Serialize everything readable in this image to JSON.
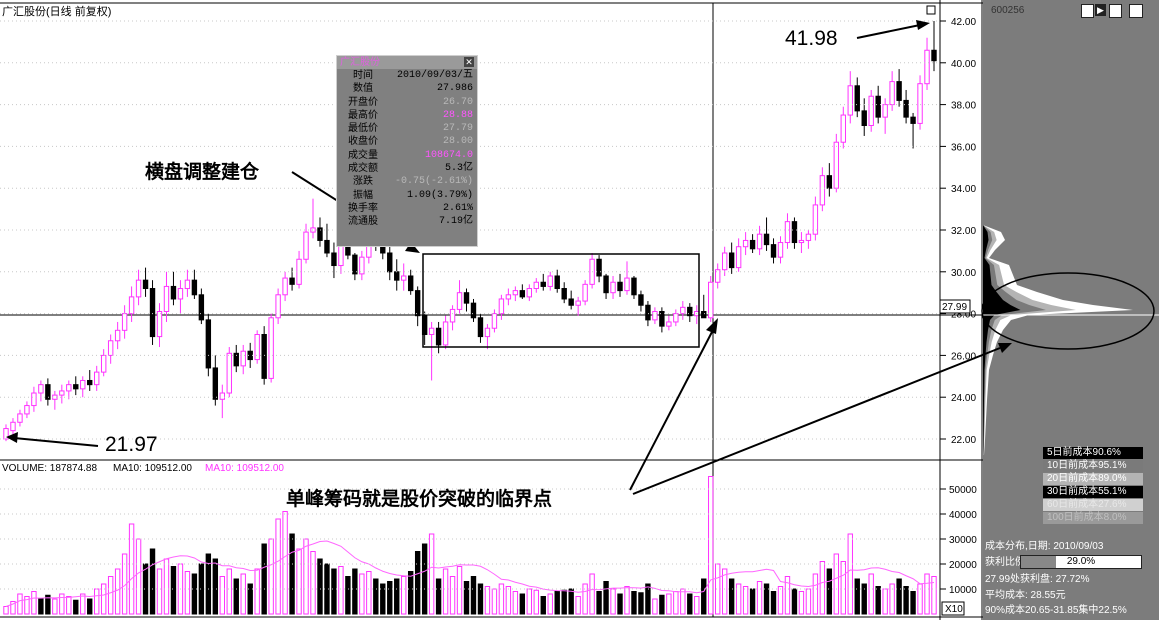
{
  "title": "广汇股份(日线 前复权)",
  "stock_code": "600256",
  "info_box": {
    "title": "广汇股份",
    "rows": [
      {
        "k": "时间",
        "v": "2010/09/03/五",
        "style": ""
      },
      {
        "k": "数值",
        "v": "27.986",
        "style": ""
      },
      {
        "k": "开盘价",
        "v": "26.70",
        "style": "dim"
      },
      {
        "k": "最高价",
        "v": "28.88",
        "style": "pk"
      },
      {
        "k": "最低价",
        "v": "27.79",
        "style": "dim"
      },
      {
        "k": "收盘价",
        "v": "28.00",
        "style": "dim"
      },
      {
        "k": "成交量",
        "v": "108674.0",
        "style": "pk"
      },
      {
        "k": "成交额",
        "v": "5.3亿",
        "style": ""
      },
      {
        "k": "涨跌",
        "v": "-0.75(-2.61%)",
        "style": "dim"
      },
      {
        "k": "振幅",
        "v": "1.09(3.79%)",
        "style": ""
      },
      {
        "k": "换手率",
        "v": "2.61%",
        "style": ""
      },
      {
        "k": "流通股",
        "v": "7.19亿",
        "style": ""
      }
    ]
  },
  "annotations": {
    "low": "21.97",
    "high": "41.98",
    "consolidation": "横盘调整建仓",
    "breakout": "单峰筹码就是股价突破的临界点"
  },
  "current_price_label": "27.99",
  "volume_header": {
    "vol": "VOLUME: 187874.88",
    "ma5": "MA10: 109512.00",
    "ma10": "MA10: 109512.00"
  },
  "volume_multiplier": "X10",
  "cost_bands": [
    {
      "label": "5日前成本90.6%",
      "bg": "#000000",
      "fg": "#ffffff"
    },
    {
      "label": "10日前成本95.1%",
      "bg": "#7a7a7a",
      "fg": "#ffffff"
    },
    {
      "label": "20日前成本89.0%",
      "bg": "#b4b4b4",
      "fg": "#ffffff"
    },
    {
      "label": "30日前成本55.1%",
      "bg": "#000000",
      "fg": "#ffffff"
    },
    {
      "label": "60日前成本27.6%",
      "bg": "#d0d0d0",
      "fg": "#e8e8e8"
    },
    {
      "label": "100日前成本8.0%",
      "bg": "#9a9a9a",
      "fg": "#c0c0c0"
    }
  ],
  "cost_summary": {
    "line1": "成本分布,日期: 2010/09/03",
    "profit_label": "获利比例:",
    "profit_value": "29.0%",
    "line3": "27.99处获利盘: 27.72%",
    "line4": "平均成本: 28.55元",
    "line5": "90%成本20.65-31.85集中22.5%"
  },
  "colors": {
    "up": "#ff33ff",
    "down": "#000000",
    "panel": "#7c7c7c"
  },
  "chart_data": {
    "type": "candlestick",
    "title": "广汇股份(日线 前复权)",
    "price_axis": {
      "ticks": [
        "22.00",
        "24.00",
        "26.00",
        "28.00",
        "30.00",
        "32.00",
        "34.00",
        "36.00",
        "38.00",
        "40.00",
        "42.00"
      ],
      "ylim": [
        21,
        42.5
      ]
    },
    "volume_axis": {
      "ticks": [
        "10000",
        "20000",
        "30000",
        "40000",
        "50000"
      ],
      "ylim": [
        0,
        60000
      ]
    },
    "candles": [
      [
        22.0,
        22.7,
        21.9,
        22.5
      ],
      [
        22.4,
        23.0,
        22.2,
        22.8
      ],
      [
        22.8,
        23.4,
        22.6,
        23.2
      ],
      [
        23.2,
        23.8,
        23.0,
        23.6
      ],
      [
        23.6,
        24.5,
        23.3,
        24.2
      ],
      [
        24.2,
        24.8,
        23.8,
        24.6
      ],
      [
        24.6,
        24.9,
        23.6,
        23.9
      ],
      [
        23.9,
        24.3,
        23.4,
        24.1
      ],
      [
        24.1,
        24.6,
        23.7,
        24.3
      ],
      [
        24.3,
        24.8,
        23.9,
        24.6
      ],
      [
        24.6,
        25.0,
        24.1,
        24.4
      ],
      [
        24.4,
        25.0,
        24.0,
        24.8
      ],
      [
        24.8,
        25.3,
        24.3,
        24.6
      ],
      [
        24.6,
        25.5,
        24.3,
        25.2
      ],
      [
        25.2,
        26.3,
        25.0,
        26.0
      ],
      [
        26.0,
        27.0,
        25.6,
        26.7
      ],
      [
        26.7,
        27.6,
        26.3,
        27.2
      ],
      [
        27.2,
        28.4,
        26.8,
        28.0
      ],
      [
        28.0,
        29.3,
        27.6,
        28.8
      ],
      [
        28.8,
        30.1,
        28.4,
        29.6
      ],
      [
        29.6,
        30.2,
        28.8,
        29.2
      ],
      [
        29.2,
        29.6,
        26.5,
        26.9
      ],
      [
        26.9,
        28.5,
        26.4,
        28.1
      ],
      [
        28.1,
        30.0,
        27.6,
        29.3
      ],
      [
        29.3,
        30.0,
        28.4,
        28.7
      ],
      [
        28.7,
        29.6,
        28.0,
        29.2
      ],
      [
        29.2,
        30.1,
        28.8,
        29.6
      ],
      [
        29.6,
        30.1,
        28.7,
        28.9
      ],
      [
        28.9,
        29.2,
        27.5,
        27.7
      ],
      [
        27.7,
        28.0,
        25.0,
        25.4
      ],
      [
        25.4,
        26.0,
        23.6,
        23.9
      ],
      [
        23.9,
        24.6,
        23.0,
        24.2
      ],
      [
        24.2,
        26.4,
        24.0,
        26.1
      ],
      [
        26.1,
        26.5,
        25.2,
        25.5
      ],
      [
        25.5,
        26.5,
        25.1,
        26.2
      ],
      [
        26.2,
        26.6,
        25.4,
        25.8
      ],
      [
        25.8,
        27.2,
        25.6,
        27.0
      ],
      [
        27.0,
        27.4,
        24.6,
        24.9
      ],
      [
        24.9,
        28.0,
        24.7,
        27.8
      ],
      [
        27.8,
        29.2,
        27.5,
        28.9
      ],
      [
        28.9,
        30.0,
        28.6,
        29.7
      ],
      [
        29.7,
        30.2,
        29.1,
        29.4
      ],
      [
        29.4,
        31.0,
        29.2,
        30.6
      ],
      [
        30.6,
        32.3,
        30.4,
        31.9
      ],
      [
        31.9,
        33.5,
        31.6,
        32.1
      ],
      [
        32.1,
        32.6,
        31.2,
        31.5
      ],
      [
        31.5,
        32.3,
        30.7,
        30.9
      ],
      [
        30.9,
        31.4,
        29.7,
        30.3
      ],
      [
        30.3,
        32.2,
        29.9,
        31.8
      ],
      [
        31.8,
        32.0,
        30.6,
        30.8
      ],
      [
        30.8,
        30.9,
        29.6,
        29.9
      ],
      [
        29.9,
        31.0,
        29.6,
        30.7
      ],
      [
        30.7,
        32.5,
        30.4,
        32.1
      ],
      [
        32.1,
        32.7,
        31.0,
        31.3
      ],
      [
        31.3,
        31.9,
        30.6,
        30.9
      ],
      [
        30.9,
        31.2,
        29.6,
        30.0
      ],
      [
        30.0,
        30.6,
        29.1,
        29.6
      ],
      [
        29.6,
        30.4,
        29.1,
        29.8
      ],
      [
        29.8,
        30.1,
        28.9,
        29.1
      ],
      [
        29.1,
        29.3,
        27.4,
        27.9
      ],
      [
        27.9,
        28.1,
        26.5,
        27.0
      ],
      [
        27.0,
        27.6,
        24.8,
        27.3
      ],
      [
        27.3,
        27.6,
        26.1,
        26.5
      ],
      [
        26.5,
        27.9,
        26.3,
        27.6
      ],
      [
        27.6,
        28.4,
        27.2,
        28.2
      ],
      [
        28.2,
        29.6,
        28.0,
        29.0
      ],
      [
        29.0,
        29.2,
        28.1,
        28.5
      ],
      [
        28.5,
        28.7,
        27.6,
        27.8
      ],
      [
        27.8,
        28.0,
        26.6,
        26.9
      ],
      [
        26.9,
        27.5,
        26.3,
        27.3
      ],
      [
        27.3,
        28.2,
        27.1,
        28.0
      ],
      [
        28.0,
        28.9,
        27.7,
        28.7
      ],
      [
        28.7,
        29.2,
        28.4,
        28.9
      ],
      [
        28.9,
        29.3,
        28.6,
        29.1
      ],
      [
        29.1,
        29.4,
        28.7,
        28.8
      ],
      [
        28.8,
        29.4,
        28.6,
        29.2
      ],
      [
        29.2,
        29.7,
        29.0,
        29.5
      ],
      [
        29.5,
        29.9,
        29.1,
        29.3
      ],
      [
        29.3,
        30.0,
        29.1,
        29.8
      ],
      [
        29.8,
        30.1,
        29.0,
        29.2
      ],
      [
        29.2,
        29.5,
        28.5,
        28.7
      ],
      [
        28.7,
        29.1,
        28.2,
        28.4
      ],
      [
        28.4,
        28.8,
        27.9,
        28.6
      ],
      [
        28.6,
        29.6,
        28.4,
        29.4
      ],
      [
        29.4,
        30.9,
        29.2,
        30.6
      ],
      [
        30.6,
        30.8,
        29.5,
        29.8
      ],
      [
        29.8,
        29.9,
        28.7,
        29.0
      ],
      [
        29.0,
        29.8,
        28.7,
        29.5
      ],
      [
        29.5,
        29.9,
        28.8,
        29.1
      ],
      [
        29.1,
        30.5,
        28.9,
        29.7
      ],
      [
        29.7,
        29.8,
        28.7,
        28.9
      ],
      [
        28.9,
        29.1,
        28.1,
        28.4
      ],
      [
        28.4,
        28.6,
        27.4,
        27.7
      ],
      [
        27.7,
        28.3,
        27.5,
        28.1
      ],
      [
        28.1,
        28.3,
        27.1,
        27.4
      ],
      [
        27.4,
        27.9,
        27.2,
        27.6
      ],
      [
        27.6,
        28.2,
        27.4,
        28.0
      ],
      [
        28.0,
        28.6,
        27.7,
        28.3
      ],
      [
        28.3,
        28.5,
        27.6,
        27.9
      ],
      [
        27.9,
        28.4,
        27.5,
        28.1
      ],
      [
        28.1,
        28.9,
        27.8,
        27.8
      ],
      [
        27.8,
        29.8,
        27.6,
        29.5
      ],
      [
        29.5,
        30.4,
        29.2,
        30.1
      ],
      [
        30.1,
        31.2,
        29.8,
        30.9
      ],
      [
        30.9,
        31.4,
        29.9,
        30.2
      ],
      [
        30.2,
        31.6,
        30.0,
        31.2
      ],
      [
        31.2,
        31.9,
        30.8,
        31.5
      ],
      [
        31.5,
        31.8,
        30.9,
        31.1
      ],
      [
        31.1,
        32.2,
        30.8,
        31.8
      ],
      [
        31.8,
        32.6,
        31.0,
        31.3
      ],
      [
        31.3,
        31.6,
        30.4,
        30.7
      ],
      [
        30.7,
        31.7,
        30.4,
        31.4
      ],
      [
        31.4,
        32.8,
        31.1,
        32.4
      ],
      [
        32.4,
        32.6,
        31.1,
        31.4
      ],
      [
        31.4,
        31.9,
        30.9,
        31.5
      ],
      [
        31.5,
        32.0,
        31.1,
        31.8
      ],
      [
        31.8,
        33.6,
        31.5,
        33.2
      ],
      [
        33.2,
        35.0,
        32.9,
        34.6
      ],
      [
        34.6,
        35.2,
        33.6,
        34.0
      ],
      [
        34.0,
        36.6,
        33.8,
        36.2
      ],
      [
        36.2,
        37.9,
        35.9,
        37.5
      ],
      [
        37.5,
        39.6,
        37.1,
        38.9
      ],
      [
        38.9,
        39.3,
        37.4,
        37.7
      ],
      [
        37.7,
        38.3,
        36.5,
        37.0
      ],
      [
        37.0,
        38.7,
        36.7,
        38.4
      ],
      [
        38.4,
        38.9,
        37.1,
        37.4
      ],
      [
        37.4,
        38.3,
        36.6,
        38.0
      ],
      [
        38.0,
        39.6,
        37.7,
        39.1
      ],
      [
        39.1,
        39.7,
        37.9,
        38.2
      ],
      [
        38.2,
        38.7,
        37.1,
        37.4
      ],
      [
        37.4,
        37.6,
        35.9,
        37.1
      ],
      [
        37.1,
        39.4,
        36.8,
        39.0
      ],
      [
        39.0,
        41.2,
        38.7,
        40.6
      ],
      [
        40.6,
        42.0,
        39.6,
        40.1
      ]
    ],
    "volumes": [
      [
        3000,
        1
      ],
      [
        5000,
        1
      ],
      [
        8000,
        1
      ],
      [
        7000,
        1
      ],
      [
        9000,
        1
      ],
      [
        6000,
        0
      ],
      [
        7500,
        0
      ],
      [
        6000,
        1
      ],
      [
        8000,
        1
      ],
      [
        7000,
        1
      ],
      [
        5500,
        0
      ],
      [
        8000,
        1
      ],
      [
        6000,
        0
      ],
      [
        10000,
        1
      ],
      [
        12000,
        1
      ],
      [
        15000,
        1
      ],
      [
        18000,
        1
      ],
      [
        24000,
        1
      ],
      [
        36000,
        1
      ],
      [
        30000,
        1
      ],
      [
        20000,
        0
      ],
      [
        26000,
        0
      ],
      [
        18000,
        1
      ],
      [
        22000,
        1
      ],
      [
        19000,
        0
      ],
      [
        20000,
        1
      ],
      [
        17000,
        1
      ],
      [
        16000,
        0
      ],
      [
        20000,
        0
      ],
      [
        24000,
        0
      ],
      [
        22000,
        0
      ],
      [
        15000,
        1
      ],
      [
        18000,
        1
      ],
      [
        14000,
        0
      ],
      [
        16000,
        1
      ],
      [
        12000,
        0
      ],
      [
        18000,
        1
      ],
      [
        28000,
        0
      ],
      [
        30000,
        1
      ],
      [
        38000,
        1
      ],
      [
        41000,
        1
      ],
      [
        32000,
        0
      ],
      [
        26000,
        1
      ],
      [
        30000,
        1
      ],
      [
        25000,
        1
      ],
      [
        22000,
        0
      ],
      [
        20000,
        0
      ],
      [
        18000,
        0
      ],
      [
        19000,
        1
      ],
      [
        15000,
        0
      ],
      [
        18000,
        0
      ],
      [
        16000,
        1
      ],
      [
        17000,
        1
      ],
      [
        14000,
        0
      ],
      [
        12000,
        0
      ],
      [
        13000,
        0
      ],
      [
        14000,
        0
      ],
      [
        15000,
        1
      ],
      [
        17000,
        0
      ],
      [
        25000,
        0
      ],
      [
        28000,
        0
      ],
      [
        32000,
        1
      ],
      [
        14000,
        0
      ],
      [
        18000,
        1
      ],
      [
        15000,
        1
      ],
      [
        19000,
        1
      ],
      [
        13000,
        0
      ],
      [
        15000,
        0
      ],
      [
        12000,
        0
      ],
      [
        11000,
        1
      ],
      [
        10000,
        1
      ],
      [
        12000,
        1
      ],
      [
        11000,
        1
      ],
      [
        9000,
        1
      ],
      [
        8000,
        0
      ],
      [
        10000,
        1
      ],
      [
        9500,
        1
      ],
      [
        7000,
        0
      ],
      [
        8000,
        1
      ],
      [
        9000,
        0
      ],
      [
        9500,
        0
      ],
      [
        10000,
        0
      ],
      [
        7000,
        1
      ],
      [
        12000,
        1
      ],
      [
        16000,
        1
      ],
      [
        9000,
        0
      ],
      [
        13000,
        0
      ],
      [
        10000,
        1
      ],
      [
        8000,
        0
      ],
      [
        11000,
        1
      ],
      [
        9000,
        0
      ],
      [
        8500,
        0
      ],
      [
        12000,
        0
      ],
      [
        6000,
        1
      ],
      [
        7500,
        0
      ],
      [
        8000,
        1
      ],
      [
        9000,
        1
      ],
      [
        10000,
        1
      ],
      [
        8000,
        0
      ],
      [
        7000,
        1
      ],
      [
        14000,
        0
      ],
      [
        55000,
        1
      ],
      [
        20000,
        1
      ],
      [
        18000,
        1
      ],
      [
        14000,
        0
      ],
      [
        12000,
        1
      ],
      [
        11000,
        1
      ],
      [
        10000,
        0
      ],
      [
        13000,
        1
      ],
      [
        12000,
        0
      ],
      [
        9000,
        0
      ],
      [
        11000,
        1
      ],
      [
        15000,
        1
      ],
      [
        10000,
        0
      ],
      [
        9000,
        1
      ],
      [
        10000,
        1
      ],
      [
        16000,
        1
      ],
      [
        21000,
        1
      ],
      [
        18000,
        0
      ],
      [
        24000,
        1
      ],
      [
        21000,
        1
      ],
      [
        32000,
        1
      ],
      [
        14000,
        0
      ],
      [
        12000,
        0
      ],
      [
        16000,
        1
      ],
      [
        11000,
        0
      ],
      [
        10000,
        1
      ],
      [
        12000,
        1
      ],
      [
        14000,
        0
      ],
      [
        11000,
        0
      ],
      [
        9000,
        0
      ],
      [
        12000,
        1
      ],
      [
        16000,
        1
      ],
      [
        15000,
        1
      ]
    ]
  }
}
